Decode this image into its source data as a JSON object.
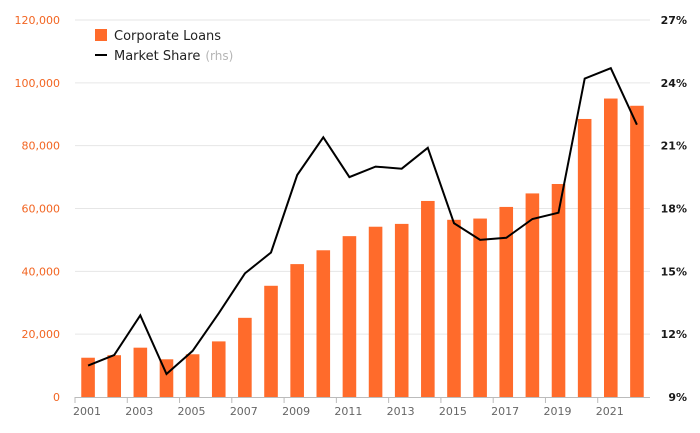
{
  "chart_data": {
    "type": "bar",
    "x": [
      2001,
      2002,
      2003,
      2004,
      2005,
      2006,
      2007,
      2008,
      2009,
      2010,
      2011,
      2012,
      2013,
      2014,
      2015,
      2016,
      2017,
      2018,
      2019,
      2020,
      2021,
      2022
    ],
    "x_tick_labels": [
      "2001",
      "2003",
      "2005",
      "2007",
      "2009",
      "2011",
      "2013",
      "2015",
      "2017",
      "2019",
      "2021"
    ],
    "y_left": {
      "ylim": [
        0,
        120000
      ],
      "tick_labels": [
        "0",
        "20,000",
        "40,000",
        "60,000",
        "80,000",
        "100,000",
        "120,000"
      ]
    },
    "y_right": {
      "ylim": [
        9,
        27
      ],
      "tick_labels": [
        "9%",
        "12%",
        "15%",
        "18%",
        "21%",
        "24%",
        "27%"
      ]
    },
    "series": [
      {
        "name": "Corporate Loans",
        "type": "bar",
        "axis": "left",
        "color": "#ff6b2b",
        "values": [
          12500,
          13300,
          15700,
          12000,
          13600,
          17700,
          25200,
          35400,
          42300,
          46700,
          51200,
          54200,
          55100,
          62400,
          56400,
          56800,
          60500,
          64800,
          67800,
          88500,
          95000,
          92700
        ]
      },
      {
        "name": "Market Share",
        "name_suffix": "(rhs)",
        "type": "line",
        "axis": "right",
        "color": "#000000",
        "values": [
          10.5,
          11.0,
          12.9,
          10.1,
          11.2,
          13.0,
          14.9,
          15.9,
          19.6,
          21.4,
          19.5,
          20.0,
          19.9,
          20.9,
          17.3,
          16.5,
          16.6,
          17.5,
          17.8,
          24.2,
          24.7,
          22.0
        ]
      }
    ],
    "grid": true,
    "legend_position": "top-left"
  },
  "legend": {
    "bar_label": "Corporate Loans",
    "line_label": "Market Share",
    "line_suffix": "(rhs)"
  }
}
